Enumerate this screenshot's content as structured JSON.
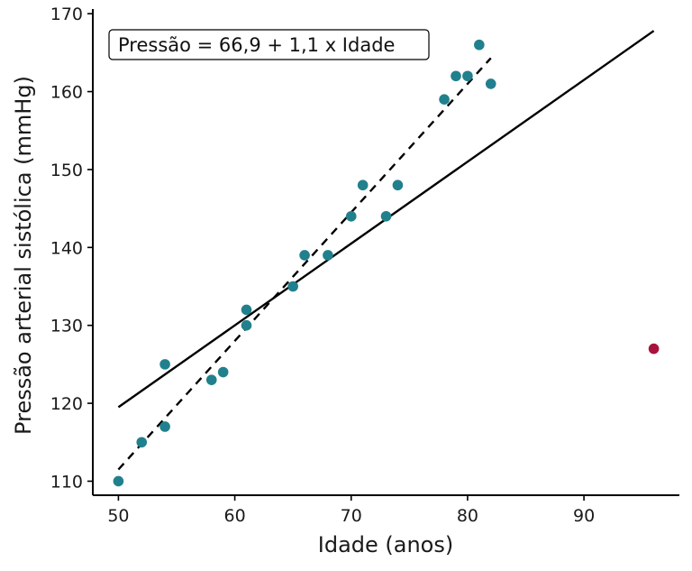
{
  "chart_data": {
    "type": "scatter",
    "xlabel": "Idade (anos)",
    "ylabel": "Pressão arterial sistólica (mmHg)",
    "xlim": [
      47.8,
      98.2
    ],
    "ylim": [
      108.2,
      170.6
    ],
    "x_ticks": [
      50,
      60,
      70,
      80,
      90
    ],
    "y_ticks": [
      110,
      120,
      130,
      140,
      150,
      160,
      170
    ],
    "grid": false,
    "annotation": "Pressão = 66,9 + 1,1 x Idade",
    "points": [
      {
        "x": 50,
        "y": 110
      },
      {
        "x": 52,
        "y": 115
      },
      {
        "x": 54,
        "y": 117
      },
      {
        "x": 54,
        "y": 125
      },
      {
        "x": 58,
        "y": 123
      },
      {
        "x": 59,
        "y": 124
      },
      {
        "x": 61,
        "y": 132
      },
      {
        "x": 61,
        "y": 130
      },
      {
        "x": 65,
        "y": 135
      },
      {
        "x": 66,
        "y": 139
      },
      {
        "x": 68,
        "y": 139
      },
      {
        "x": 70,
        "y": 144
      },
      {
        "x": 71,
        "y": 148
      },
      {
        "x": 73,
        "y": 144
      },
      {
        "x": 74,
        "y": 148
      },
      {
        "x": 78,
        "y": 159
      },
      {
        "x": 79,
        "y": 162
      },
      {
        "x": 80,
        "y": 162
      },
      {
        "x": 81,
        "y": 166
      },
      {
        "x": 82,
        "y": 161
      }
    ],
    "outlier": {
      "x": 96,
      "y": 127
    },
    "fit_solid": {
      "x0": 50,
      "y0": 119.5,
      "x1": 96,
      "y1": 167.8
    },
    "fit_dashed": {
      "x0": 50,
      "y0": 111.5,
      "x1": 82,
      "y1": 164.3
    },
    "colors": {
      "points": "#21808d",
      "outlier": "#a8133d",
      "solid_line": "#000000",
      "dashed_line": "#000000",
      "axis": "#000000"
    }
  }
}
